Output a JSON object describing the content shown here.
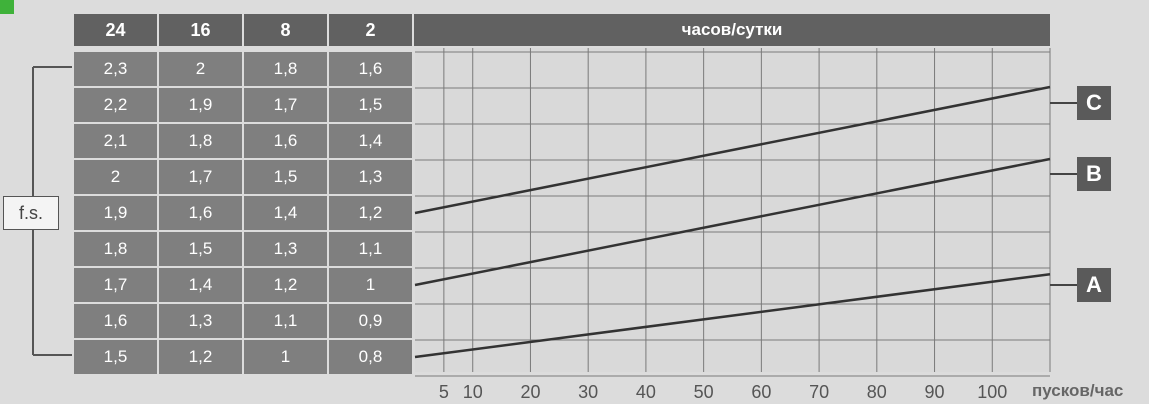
{
  "header": {
    "col_labels": [
      "24",
      "16",
      "8",
      "2"
    ],
    "title": "часов/сутки"
  },
  "fs_label": "f.s.",
  "table": [
    [
      "2,3",
      "2",
      "1,8",
      "1,6"
    ],
    [
      "2,2",
      "1,9",
      "1,7",
      "1,5"
    ],
    [
      "2,1",
      "1,8",
      "1,6",
      "1,4"
    ],
    [
      "2",
      "1,7",
      "1,5",
      "1,3"
    ],
    [
      "1,9",
      "1,6",
      "1,4",
      "1,2"
    ],
    [
      "1,8",
      "1,5",
      "1,3",
      "1,1"
    ],
    [
      "1,7",
      "1,4",
      "1,2",
      "1"
    ],
    [
      "1,6",
      "1,3",
      "1,1",
      "0,9"
    ],
    [
      "1,5",
      "1,2",
      "1",
      "0,8"
    ]
  ],
  "chart_data": {
    "type": "line",
    "xlabel": "пусков/час",
    "x_ticks": [
      5,
      10,
      20,
      30,
      40,
      50,
      60,
      70,
      80,
      90,
      100
    ],
    "xlim": [
      0,
      110
    ],
    "y_axis_by_hours": {
      "24": [
        1.5,
        2.3
      ],
      "16": [
        1.2,
        2.0
      ],
      "8": [
        1.0,
        1.8
      ],
      "2": [
        0.8,
        1.6
      ]
    },
    "ylim_24h": [
      1.5,
      2.3
    ],
    "series": [
      {
        "name": "A",
        "x": [
          0,
          110
        ],
        "y_24h": [
          1.5,
          1.73
        ]
      },
      {
        "name": "B",
        "x": [
          0,
          110
        ],
        "y_24h": [
          1.7,
          2.05
        ]
      },
      {
        "name": "C",
        "x": [
          0,
          110
        ],
        "y_24h": [
          1.9,
          2.25
        ]
      }
    ],
    "grid": true
  },
  "colors": {
    "header_bg": "#616161",
    "cell_bg": "#7f7f7f",
    "line": "#333333",
    "badge": "#5a5a5a",
    "accent": "#3fb23a"
  }
}
